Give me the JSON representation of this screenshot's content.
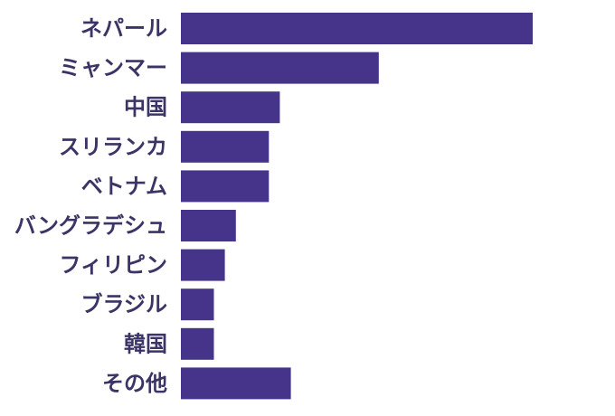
{
  "chart_data": {
    "type": "bar",
    "orientation": "horizontal",
    "title": "",
    "xlabel": "",
    "ylabel": "",
    "categories": [
      "ネパール",
      "ミャンマー",
      "中国",
      "スリランカ",
      "ベトナム",
      "バングラデシュ",
      "フィリピン",
      "ブラジル",
      "韓国",
      "その他"
    ],
    "values": [
      32,
      18,
      9,
      8,
      8,
      5,
      4,
      3,
      3,
      10
    ],
    "xlim": [
      0,
      32
    ],
    "grid": false,
    "legend": "none",
    "bar_color": "#46338a",
    "label_color": "#3b3466"
  }
}
